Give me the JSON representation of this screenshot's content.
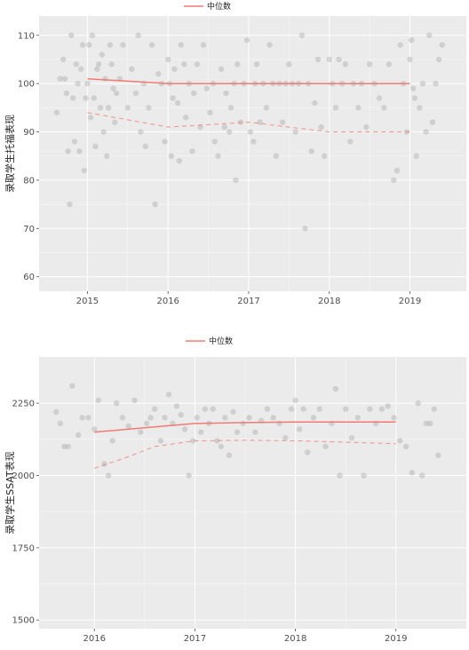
{
  "colors": {
    "panel": "#ebebeb",
    "grid": "#ffffff",
    "median": "#f07b72",
    "points": "#9a9a9a"
  },
  "chart_data": [
    {
      "type": "scatter",
      "legend": {
        "label": "中位数",
        "position": "top"
      },
      "ylabel": "录取学生托福表现",
      "xlim": [
        2014.4,
        2019.7
      ],
      "ylim": [
        57,
        114
      ],
      "xticks": [
        2015,
        2016,
        2017,
        2018,
        2019
      ],
      "yticks": [
        60,
        70,
        80,
        90,
        100,
        110
      ],
      "grid": true,
      "median_line": {
        "x": [
          2015.0,
          2015.5,
          2016.0,
          2016.5,
          2017.0,
          2017.5,
          2018.0,
          2018.5,
          2019.0
        ],
        "y": [
          101,
          100.5,
          100,
          100,
          100,
          100,
          100,
          100,
          100
        ]
      },
      "lower_band": {
        "x": [
          2015.0,
          2015.5,
          2016.0,
          2016.5,
          2017.0,
          2017.5,
          2018.0,
          2018.5,
          2019.0
        ],
        "y": [
          94,
          92.5,
          91,
          91.5,
          92,
          91,
          90,
          90,
          90
        ]
      },
      "points": [
        [
          2014.62,
          94
        ],
        [
          2014.66,
          101
        ],
        [
          2014.7,
          105
        ],
        [
          2014.72,
          101
        ],
        [
          2014.74,
          98
        ],
        [
          2014.76,
          86
        ],
        [
          2014.78,
          75
        ],
        [
          2014.8,
          110
        ],
        [
          2014.82,
          97
        ],
        [
          2014.84,
          88
        ],
        [
          2014.86,
          104
        ],
        [
          2014.88,
          100
        ],
        [
          2014.9,
          86
        ],
        [
          2014.92,
          103
        ],
        [
          2014.94,
          108
        ],
        [
          2014.96,
          82
        ],
        [
          2014.98,
          97
        ],
        [
          2015.0,
          100
        ],
        [
          2015.02,
          108
        ],
        [
          2015.04,
          93
        ],
        [
          2015.06,
          110
        ],
        [
          2015.08,
          97
        ],
        [
          2015.1,
          87
        ],
        [
          2015.12,
          103
        ],
        [
          2015.14,
          104
        ],
        [
          2015.16,
          95
        ],
        [
          2015.18,
          106
        ],
        [
          2015.2,
          90
        ],
        [
          2015.22,
          101
        ],
        [
          2015.24,
          85
        ],
        [
          2015.26,
          95
        ],
        [
          2015.28,
          108
        ],
        [
          2015.3,
          104
        ],
        [
          2015.32,
          99
        ],
        [
          2015.34,
          92
        ],
        [
          2015.36,
          98
        ],
        [
          2015.4,
          101
        ],
        [
          2015.44,
          108
        ],
        [
          2015.5,
          95
        ],
        [
          2015.55,
          103
        ],
        [
          2015.6,
          98
        ],
        [
          2015.63,
          110
        ],
        [
          2015.66,
          90
        ],
        [
          2015.7,
          100
        ],
        [
          2015.72,
          87
        ],
        [
          2015.76,
          95
        ],
        [
          2015.8,
          108
        ],
        [
          2015.84,
          75
        ],
        [
          2015.88,
          102
        ],
        [
          2015.92,
          100
        ],
        [
          2015.96,
          88
        ],
        [
          2016.0,
          105
        ],
        [
          2016.02,
          100
        ],
        [
          2016.04,
          85
        ],
        [
          2016.06,
          97
        ],
        [
          2016.08,
          103
        ],
        [
          2016.12,
          96
        ],
        [
          2016.14,
          84
        ],
        [
          2016.16,
          108
        ],
        [
          2016.2,
          104
        ],
        [
          2016.22,
          93
        ],
        [
          2016.26,
          100
        ],
        [
          2016.3,
          86
        ],
        [
          2016.32,
          98
        ],
        [
          2016.36,
          104
        ],
        [
          2016.4,
          91
        ],
        [
          2016.44,
          108
        ],
        [
          2016.48,
          99
        ],
        [
          2016.52,
          94
        ],
        [
          2016.56,
          100
        ],
        [
          2016.58,
          88
        ],
        [
          2016.62,
          85
        ],
        [
          2016.66,
          103
        ],
        [
          2016.7,
          91
        ],
        [
          2016.72,
          98
        ],
        [
          2016.76,
          90
        ],
        [
          2016.78,
          95
        ],
        [
          2016.82,
          100
        ],
        [
          2016.84,
          80
        ],
        [
          2016.86,
          104
        ],
        [
          2016.9,
          92
        ],
        [
          2016.94,
          100
        ],
        [
          2016.98,
          109
        ],
        [
          2017.02,
          90
        ],
        [
          2017.06,
          88
        ],
        [
          2017.08,
          100
        ],
        [
          2017.1,
          104
        ],
        [
          2017.14,
          92
        ],
        [
          2017.18,
          100
        ],
        [
          2017.22,
          95
        ],
        [
          2017.26,
          108
        ],
        [
          2017.3,
          100
        ],
        [
          2017.34,
          85
        ],
        [
          2017.38,
          100
        ],
        [
          2017.42,
          92
        ],
        [
          2017.46,
          100
        ],
        [
          2017.5,
          104
        ],
        [
          2017.54,
          100
        ],
        [
          2017.58,
          90
        ],
        [
          2017.62,
          100
        ],
        [
          2017.66,
          110
        ],
        [
          2017.7,
          70
        ],
        [
          2017.74,
          100
        ],
        [
          2017.78,
          86
        ],
        [
          2017.82,
          96
        ],
        [
          2017.86,
          105
        ],
        [
          2017.9,
          91
        ],
        [
          2017.94,
          85
        ],
        [
          2018.0,
          105
        ],
        [
          2018.04,
          100
        ],
        [
          2018.08,
          95
        ],
        [
          2018.12,
          105
        ],
        [
          2018.16,
          100
        ],
        [
          2018.2,
          104
        ],
        [
          2018.26,
          88
        ],
        [
          2018.3,
          100
        ],
        [
          2018.36,
          95
        ],
        [
          2018.4,
          100
        ],
        [
          2018.46,
          91
        ],
        [
          2018.5,
          104
        ],
        [
          2018.56,
          100
        ],
        [
          2018.62,
          97
        ],
        [
          2018.68,
          95
        ],
        [
          2018.74,
          104
        ],
        [
          2018.8,
          80
        ],
        [
          2018.84,
          82
        ],
        [
          2018.88,
          108
        ],
        [
          2018.92,
          100
        ],
        [
          2018.96,
          90
        ],
        [
          2019.0,
          105
        ],
        [
          2019.02,
          109
        ],
        [
          2019.04,
          99
        ],
        [
          2019.06,
          97
        ],
        [
          2019.08,
          85
        ],
        [
          2019.12,
          95
        ],
        [
          2019.16,
          100
        ],
        [
          2019.2,
          90
        ],
        [
          2019.24,
          110
        ],
        [
          2019.28,
          92
        ],
        [
          2019.32,
          100
        ],
        [
          2019.36,
          105
        ],
        [
          2019.4,
          108
        ]
      ]
    },
    {
      "type": "scatter",
      "legend": {
        "label": "中位数",
        "position": "top"
      },
      "ylabel": "录取学生SSAT表现",
      "xlim": [
        2015.45,
        2019.7
      ],
      "ylim": [
        1470,
        2410
      ],
      "xticks": [
        2016,
        2017,
        2018,
        2019
      ],
      "yticks": [
        1500,
        1750,
        2000,
        2250
      ],
      "grid": true,
      "median_line": {
        "x": [
          2016.0,
          2016.5,
          2017.0,
          2017.5,
          2018.0,
          2018.5,
          2019.0
        ],
        "y": [
          2150,
          2165,
          2180,
          2183,
          2185,
          2185,
          2185
        ]
      },
      "lower_band": {
        "x": [
          2016.0,
          2016.3,
          2016.6,
          2017.0,
          2017.5,
          2018.0,
          2018.5,
          2019.0
        ],
        "y": [
          2025,
          2060,
          2100,
          2120,
          2122,
          2120,
          2115,
          2110
        ]
      },
      "points": [
        [
          2015.62,
          2220
        ],
        [
          2015.66,
          2180
        ],
        [
          2015.7,
          2100
        ],
        [
          2015.74,
          2100
        ],
        [
          2015.78,
          2310
        ],
        [
          2015.84,
          2140
        ],
        [
          2015.88,
          2200
        ],
        [
          2015.94,
          2200
        ],
        [
          2016.0,
          2160
        ],
        [
          2016.04,
          2260
        ],
        [
          2016.1,
          2040
        ],
        [
          2016.14,
          2000
        ],
        [
          2016.18,
          2120
        ],
        [
          2016.22,
          2250
        ],
        [
          2016.28,
          2200
        ],
        [
          2016.34,
          2170
        ],
        [
          2016.4,
          2260
        ],
        [
          2016.46,
          2150
        ],
        [
          2016.52,
          2180
        ],
        [
          2016.56,
          2200
        ],
        [
          2016.6,
          2230
        ],
        [
          2016.66,
          2120
        ],
        [
          2016.7,
          2200
        ],
        [
          2016.74,
          2280
        ],
        [
          2016.78,
          2180
        ],
        [
          2016.82,
          2240
        ],
        [
          2016.86,
          2210
        ],
        [
          2016.9,
          2160
        ],
        [
          2016.94,
          2000
        ],
        [
          2016.98,
          2120
        ],
        [
          2017.02,
          2200
        ],
        [
          2017.06,
          2150
        ],
        [
          2017.1,
          2230
        ],
        [
          2017.14,
          2180
        ],
        [
          2017.18,
          2230
        ],
        [
          2017.22,
          2120
        ],
        [
          2017.26,
          2100
        ],
        [
          2017.3,
          2200
        ],
        [
          2017.34,
          2070
        ],
        [
          2017.38,
          2220
        ],
        [
          2017.42,
          2150
        ],
        [
          2017.48,
          2180
        ],
        [
          2017.54,
          2200
        ],
        [
          2017.6,
          2150
        ],
        [
          2017.66,
          2190
        ],
        [
          2017.72,
          2230
        ],
        [
          2017.78,
          2200
        ],
        [
          2017.84,
          2180
        ],
        [
          2017.9,
          2130
        ],
        [
          2017.96,
          2230
        ],
        [
          2018.0,
          2260
        ],
        [
          2018.04,
          2160
        ],
        [
          2018.08,
          2230
        ],
        [
          2018.12,
          2080
        ],
        [
          2018.18,
          2200
        ],
        [
          2018.24,
          2230
        ],
        [
          2018.3,
          2100
        ],
        [
          2018.36,
          2180
        ],
        [
          2018.4,
          2300
        ],
        [
          2018.44,
          2000
        ],
        [
          2018.5,
          2230
        ],
        [
          2018.56,
          2130
        ],
        [
          2018.62,
          2200
        ],
        [
          2018.68,
          2000
        ],
        [
          2018.74,
          2230
        ],
        [
          2018.8,
          2180
        ],
        [
          2018.86,
          2230
        ],
        [
          2018.92,
          2240
        ],
        [
          2018.98,
          2200
        ],
        [
          2019.04,
          2120
        ],
        [
          2019.1,
          2100
        ],
        [
          2019.16,
          2010
        ],
        [
          2019.22,
          2250
        ],
        [
          2019.26,
          2000
        ],
        [
          2019.3,
          2180
        ],
        [
          2019.34,
          2180
        ],
        [
          2019.38,
          2230
        ],
        [
          2019.42,
          2070
        ]
      ]
    }
  ]
}
